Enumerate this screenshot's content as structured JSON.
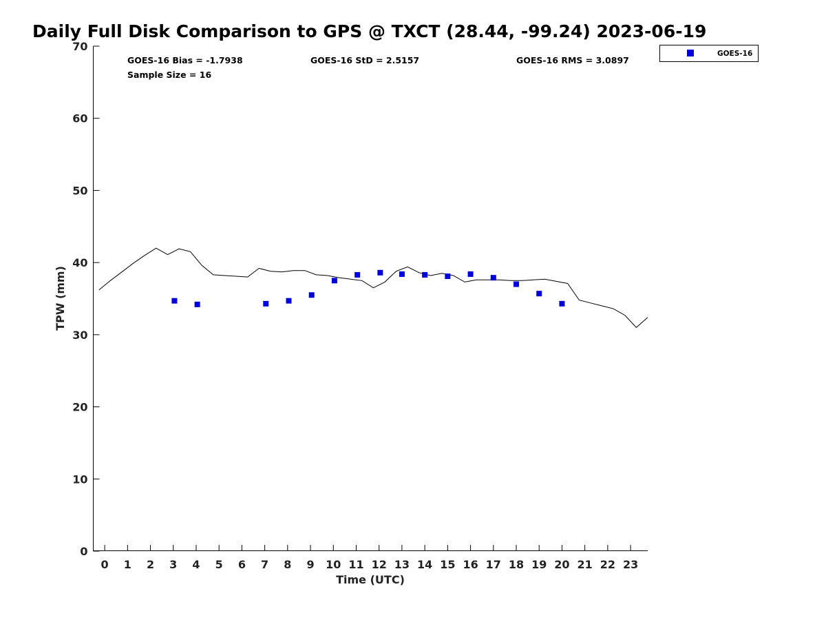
{
  "chart_data": {
    "type": "scatter",
    "title": "Daily Full Disk Comparison to GPS @ TXCT (28.44, -99.24) 2023-06-19",
    "xlabel": "Time (UTC)",
    "ylabel": "TPW (mm)",
    "xlim": [
      -0.5,
      23.75
    ],
    "ylim": [
      0,
      70
    ],
    "xticks": [
      0,
      1,
      2,
      3,
      4,
      5,
      6,
      7,
      8,
      9,
      10,
      11,
      12,
      13,
      14,
      15,
      16,
      17,
      18,
      19,
      20,
      21,
      22,
      23
    ],
    "yticks": [
      0,
      10,
      20,
      30,
      40,
      50,
      60,
      70
    ],
    "grid": false,
    "legend_position": "top-right, outside plot",
    "stats": {
      "bias": "GOES-16 Bias = -1.7938",
      "std": "GOES-16 StD = 2.5157",
      "rms": "GOES-16 RMS = 3.0897",
      "sample_size": "Sample Size = 16"
    },
    "series": [
      {
        "name": "GOES-16",
        "kind": "scatter",
        "marker": "square",
        "color": "#0000dd",
        "x": [
          3.05,
          4.05,
          7.05,
          8.05,
          9.05,
          10.05,
          11.05,
          12.05,
          13.0,
          14.0,
          15.0,
          16.0,
          17.0,
          18.0,
          19.0,
          20.0
        ],
        "y": [
          34.7,
          34.2,
          34.3,
          34.7,
          35.5,
          37.5,
          38.3,
          38.6,
          38.4,
          38.3,
          38.1,
          38.4,
          37.9,
          37.0,
          35.7,
          34.3
        ]
      },
      {
        "kind": "line",
        "color": "#000000",
        "x": [
          -0.25,
          0.25,
          0.75,
          1.25,
          1.75,
          2.25,
          2.75,
          3.25,
          3.75,
          4.25,
          4.75,
          5.25,
          5.75,
          6.25,
          6.75,
          7.25,
          7.75,
          8.25,
          8.75,
          9.25,
          9.75,
          10.25,
          10.75,
          11.25,
          11.75,
          12.25,
          12.75,
          13.25,
          13.75,
          14.25,
          14.75,
          15.25,
          15.75,
          16.25,
          16.75,
          17.25,
          17.75,
          18.25,
          18.75,
          19.25,
          19.75,
          20.25,
          20.75,
          21.25,
          21.75,
          22.25,
          22.75,
          23.25,
          23.75
        ],
        "y": [
          36.2,
          37.5,
          38.7,
          39.9,
          41.0,
          42.0,
          41.1,
          41.9,
          41.5,
          39.6,
          38.3,
          38.2,
          38.1,
          38.0,
          39.2,
          38.8,
          38.7,
          38.9,
          38.9,
          38.3,
          38.2,
          37.9,
          37.7,
          37.5,
          36.5,
          37.3,
          38.8,
          39.4,
          38.6,
          38.2,
          38.5,
          38.2,
          37.3,
          37.6,
          37.6,
          37.6,
          37.5,
          37.5,
          37.6,
          37.7,
          37.4,
          37.1,
          34.8,
          34.4,
          34.0,
          33.6,
          32.7,
          31.0,
          32.4
        ]
      }
    ]
  }
}
